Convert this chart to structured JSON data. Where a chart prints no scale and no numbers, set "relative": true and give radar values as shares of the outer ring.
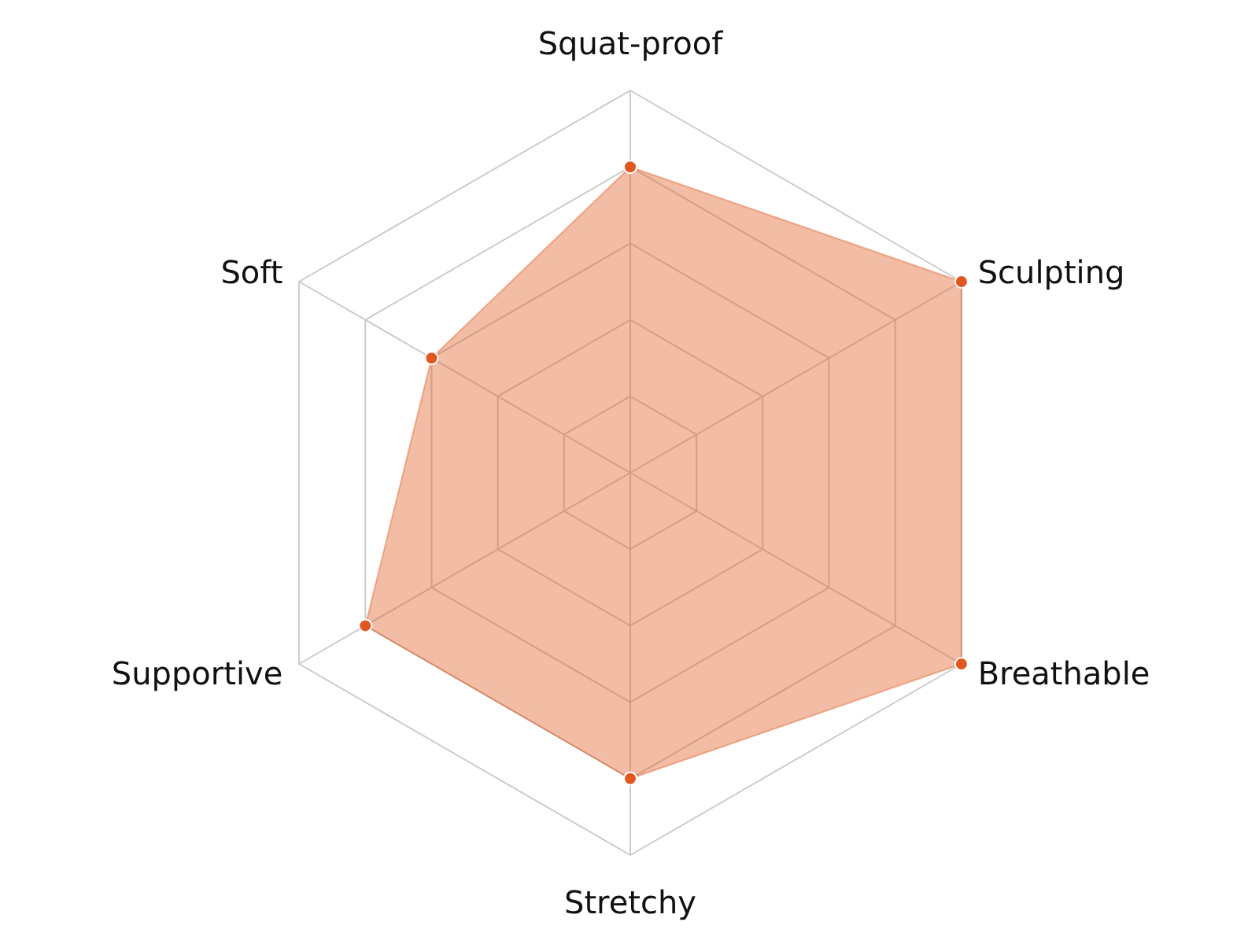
{
  "chart_data": {
    "type": "radar",
    "relative": true,
    "grid": true,
    "marker": "circle",
    "categories": [
      "Squat-proof",
      "Sculpting",
      "Breathable",
      "Stretchy",
      "Supportive",
      "Soft"
    ],
    "series": [
      {
        "color": "#e0571f",
        "values": [
          0.8,
          1.0,
          1.0,
          0.8,
          0.8,
          0.6
        ]
      }
    ]
  }
}
